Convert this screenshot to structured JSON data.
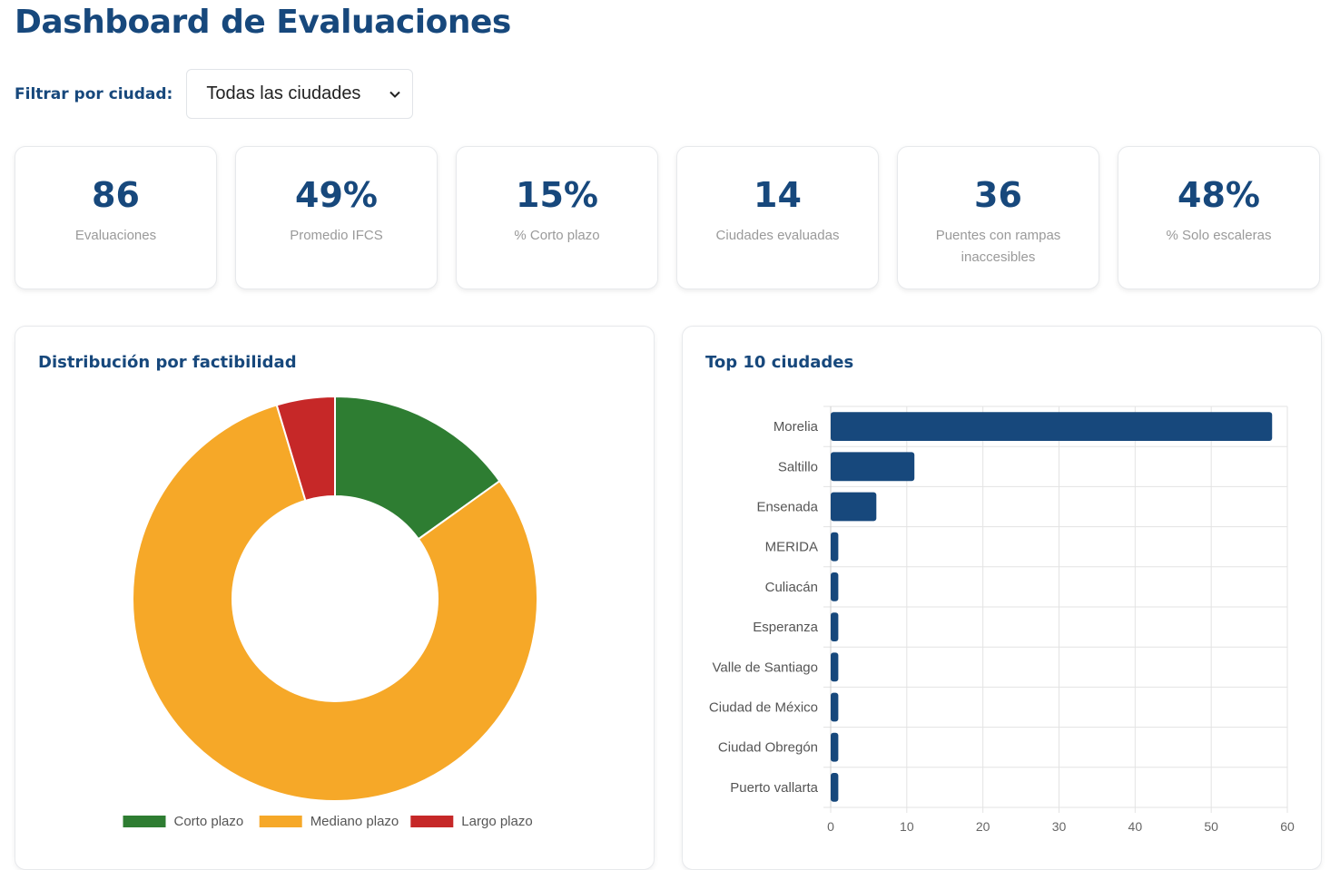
{
  "header": {
    "title": "Dashboard de Evaluaciones"
  },
  "filter": {
    "label": "Filtrar por ciudad:",
    "selected": "Todas las ciudades"
  },
  "kpis": [
    {
      "value": "86",
      "label": "Evaluaciones"
    },
    {
      "value": "49%",
      "label": "Promedio IFCS"
    },
    {
      "value": "15%",
      "label": "% Corto plazo"
    },
    {
      "value": "14",
      "label": "Ciudades evaluadas"
    },
    {
      "value": "36",
      "label": "Puentes con rampas inaccesibles"
    },
    {
      "value": "48%",
      "label": "% Solo escaleras"
    }
  ],
  "panels": {
    "factibilidad_title": "Distribución por factibilidad",
    "ciudades_title": "Top 10 ciudades"
  },
  "chart_data": [
    {
      "type": "pie",
      "variant": "doughnut",
      "title": "Distribución por factibilidad",
      "categories": [
        "Corto plazo",
        "Mediano plazo",
        "Largo plazo"
      ],
      "values": [
        13,
        69,
        4
      ],
      "colors": [
        "#2e7d32",
        "#f6a828",
        "#c62828"
      ],
      "legend": "bottom"
    },
    {
      "type": "bar",
      "orientation": "horizontal",
      "title": "Top 10 ciudades",
      "categories": [
        "Morelia",
        "Saltillo",
        "Ensenada",
        "MERIDA",
        "Culiacán",
        "Esperanza",
        "Valle de Santiago",
        "Ciudad de México",
        "Ciudad Obregón",
        "Puerto vallarta"
      ],
      "values": [
        58,
        11,
        6,
        1,
        1,
        1,
        1,
        1,
        1,
        1
      ],
      "xlim": [
        0,
        60
      ],
      "xticks": [
        0,
        10,
        20,
        30,
        40,
        50,
        60
      ],
      "grid": true,
      "color": "#17487c"
    }
  ]
}
